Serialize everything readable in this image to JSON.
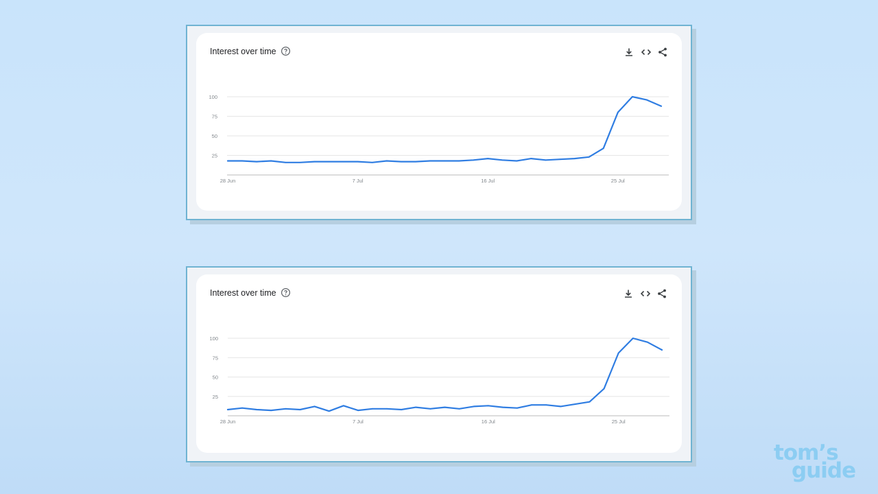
{
  "cards": [
    {
      "title": "Interest over time",
      "help_icon": "help-circle-icon",
      "tools": [
        "download-icon",
        "embed-code-icon",
        "share-icon"
      ]
    },
    {
      "title": "Interest over time",
      "help_icon": "help-circle-icon",
      "tools": [
        "download-icon",
        "embed-code-icon",
        "share-icon"
      ]
    }
  ],
  "brand": {
    "line1": "tom’s",
    "line2": "guide"
  },
  "colors": {
    "line": "#2f7de2",
    "grid": "#e6e6e6",
    "axis": "#c8c8c8",
    "tick_text": "#80868b",
    "frame_border": "#6fb3d2"
  },
  "chart_data": [
    {
      "type": "line",
      "y_ticks": [
        25,
        50,
        75,
        100
      ],
      "ylim": [
        0,
        100
      ],
      "x_ticks": [
        "28 Jun",
        "7 Jul",
        "16 Jul",
        "25 Jul"
      ],
      "x": [
        "28 Jun",
        "29 Jun",
        "30 Jun",
        "1 Jul",
        "2 Jul",
        "3 Jul",
        "4 Jul",
        "5 Jul",
        "6 Jul",
        "7 Jul",
        "8 Jul",
        "9 Jul",
        "10 Jul",
        "11 Jul",
        "12 Jul",
        "13 Jul",
        "14 Jul",
        "15 Jul",
        "16 Jul",
        "17 Jul",
        "18 Jul",
        "19 Jul",
        "20 Jul",
        "21 Jul",
        "22 Jul",
        "23 Jul",
        "24 Jul",
        "25 Jul",
        "26 Jul",
        "27 Jul",
        "28 Jul"
      ],
      "series": [
        {
          "values": [
            18,
            18,
            17,
            18,
            16,
            16,
            17,
            17,
            17,
            17,
            16,
            18,
            17,
            17,
            18,
            18,
            18,
            19,
            21,
            19,
            18,
            21,
            19,
            20,
            21,
            23,
            34,
            80,
            100,
            96,
            88
          ]
        }
      ],
      "grid": true
    },
    {
      "type": "line",
      "y_ticks": [
        25,
        50,
        75,
        100
      ],
      "ylim": [
        0,
        100
      ],
      "x_ticks": [
        "28 Jun",
        "7 Jul",
        "16 Jul",
        "25 Jul"
      ],
      "x": [
        "28 Jun",
        "29 Jun",
        "30 Jun",
        "1 Jul",
        "2 Jul",
        "3 Jul",
        "4 Jul",
        "5 Jul",
        "6 Jul",
        "7 Jul",
        "8 Jul",
        "9 Jul",
        "10 Jul",
        "11 Jul",
        "12 Jul",
        "13 Jul",
        "14 Jul",
        "15 Jul",
        "16 Jul",
        "17 Jul",
        "18 Jul",
        "19 Jul",
        "20 Jul",
        "21 Jul",
        "22 Jul",
        "23 Jul",
        "24 Jul",
        "25 Jul",
        "26 Jul",
        "27 Jul",
        "28 Jul"
      ],
      "series": [
        {
          "values": [
            8,
            10,
            8,
            7,
            9,
            8,
            12,
            6,
            13,
            7,
            9,
            9,
            8,
            11,
            9,
            11,
            9,
            12,
            13,
            11,
            10,
            14,
            14,
            12,
            15,
            18,
            35,
            81,
            100,
            95,
            85
          ]
        }
      ],
      "grid": true
    }
  ]
}
